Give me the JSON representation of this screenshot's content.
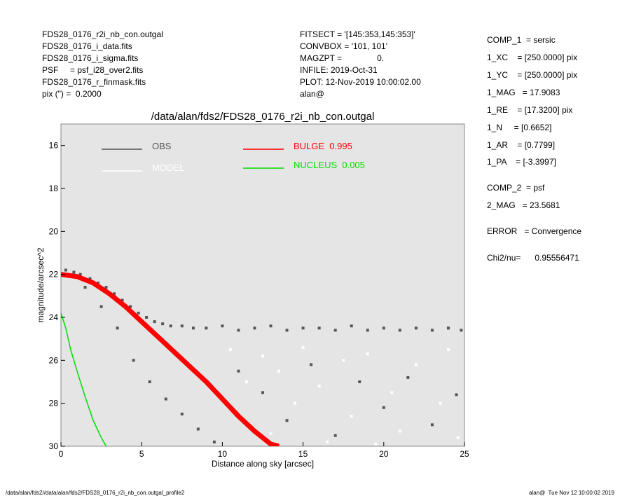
{
  "header": {
    "left": [
      "FDS28_0176_r2i_nb_con.outgal",
      "FDS28_0176_i_data.fits",
      "FDS28_0176_i_sigma.fits",
      "PSF     = psf_i28_over2.fits",
      "FDS28_0176_r_finmask.fits",
      "pix (\") =  0.2000"
    ],
    "middle": [
      "FITSECT = '[145:353,145:353]'",
      "CONVBOX = '101, 101'",
      "MAGZPT =               0.",
      "INFILE: 2019-Oct-31",
      "PLOT: 12-Nov-2019 10:00:02.00",
      "alan@"
    ],
    "right": [
      "COMP_1  = sersic",
      "1_XC    = [250.0000] pix",
      "1_YC    = [250.0000] pix",
      "1_MAG   = 17.9083",
      "1_RE    = [17.3200] pix",
      "1_N     = [0.6652]",
      "1_AR    = [0.7799]",
      "1_PA    = [-3.3997]",
      "COMP_2  = psf",
      "2_MAG   = 23.5681",
      "ERROR   = Convergence",
      "Chi2/nu=      0.95556471"
    ]
  },
  "footer": {
    "left": "/data/alan/fds2//data/alan/fds2/FDS28_0176_r2i_nb_con.outgal_profile2",
    "right": "alan@  Tue Nov 12 10:00:02 2019"
  },
  "chart_data": {
    "type": "scatter",
    "title": "/data/alan/fds2/FDS28_0176_r2i_nb_con.outgal",
    "x_label": "Distance along sky [arcsec]",
    "y_label": "magnitude/arcsec^2",
    "xlim": [
      0,
      25
    ],
    "xticks": [
      0,
      5,
      10,
      15,
      20,
      25
    ],
    "ylim": [
      15,
      30
    ],
    "yticks": [
      16,
      18,
      20,
      22,
      24,
      26,
      28,
      30
    ],
    "y_inverted": true,
    "series": [
      {
        "name": "OBS",
        "color": "#555555",
        "kind": "points",
        "x": [
          0.3,
          0.8,
          1.2,
          1.8,
          2.3,
          2.8,
          3.3,
          3.8,
          4.3,
          4.8,
          5.3,
          5.8,
          6.3,
          6.8,
          7.5,
          8.2,
          9,
          10,
          11,
          12,
          13,
          14,
          15,
          16,
          17,
          18,
          19,
          20,
          21,
          22,
          23,
          24,
          24.8,
          4.5,
          5.5,
          6.5,
          7.5,
          8.5,
          9.5,
          11,
          12.5,
          14,
          15.5,
          17,
          18.5,
          20,
          21.5,
          23,
          24.5,
          2.5,
          3.5,
          1.5
        ],
        "values": [
          21.8,
          21.9,
          22.0,
          22.2,
          22.4,
          22.6,
          22.9,
          23.2,
          23.5,
          23.8,
          24.0,
          24.2,
          24.3,
          24.4,
          24.4,
          24.5,
          24.5,
          24.4,
          24.6,
          24.5,
          24.4,
          24.6,
          24.5,
          24.5,
          24.6,
          24.4,
          24.6,
          24.5,
          24.6,
          24.5,
          24.6,
          24.5,
          24.6,
          26.0,
          27.0,
          27.8,
          28.5,
          29.2,
          29.8,
          26.5,
          27.5,
          28.8,
          26.2,
          29.5,
          27.0,
          28.2,
          26.8,
          29.0,
          27.6,
          23.5,
          24.5,
          22.6
        ]
      },
      {
        "name": "MODEL",
        "color": "#ffffff",
        "kind": "points",
        "x": [
          10.5,
          11.5,
          12.5,
          13.5,
          14.5,
          15,
          16,
          17.5,
          18,
          19,
          20.5,
          21,
          22,
          23.5,
          24,
          24.6,
          16.5,
          13,
          19.5
        ],
        "values": [
          25.5,
          27,
          25.8,
          26.5,
          28,
          25.4,
          27.2,
          26,
          28.6,
          25.7,
          27.5,
          29.3,
          26.2,
          28,
          25.5,
          29.6,
          29.8,
          29.4,
          29.9
        ]
      },
      {
        "name": "BULGE  0.995",
        "color": "#ff0000",
        "kind": "line",
        "x": [
          0,
          1,
          2,
          3,
          4,
          5,
          6,
          7,
          8,
          9,
          10,
          11,
          12,
          13,
          13.5
        ],
        "values": [
          22.0,
          22.1,
          22.4,
          22.9,
          23.5,
          24.2,
          24.9,
          25.6,
          26.3,
          27.0,
          27.8,
          28.6,
          29.3,
          29.9,
          30.0
        ]
      },
      {
        "name": "NUCLEUS  0.005",
        "color": "#00dd00",
        "kind": "line",
        "x": [
          0,
          0.3,
          0.6,
          1,
          1.5,
          2,
          2.5,
          2.8
        ],
        "values": [
          23.8,
          24.5,
          25.5,
          26.5,
          27.7,
          28.8,
          29.6,
          30.0
        ]
      }
    ]
  }
}
